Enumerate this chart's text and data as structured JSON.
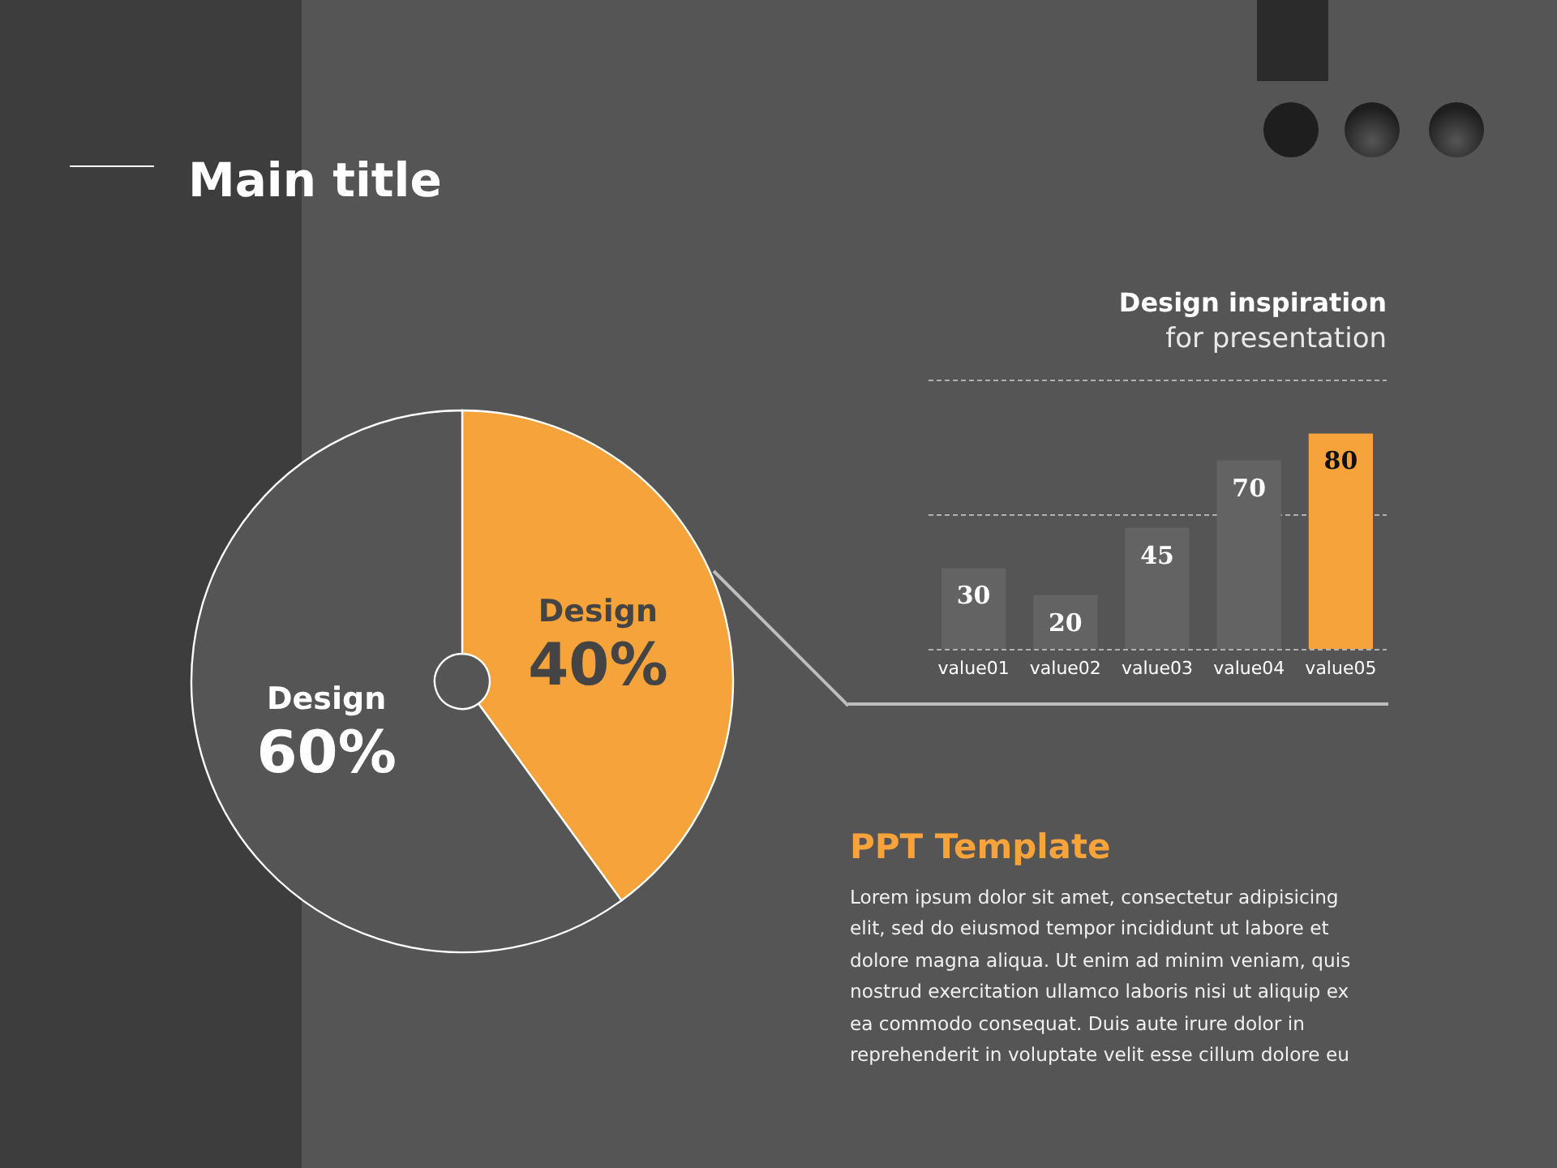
{
  "chart_data": [
    {
      "type": "pie",
      "title": "Main title",
      "categories": [
        "Design",
        "Design"
      ],
      "values": [
        40,
        60
      ],
      "colors": [
        "#f5a33a",
        "#555555"
      ],
      "value_labels": [
        "40%",
        "60%"
      ]
    },
    {
      "type": "bar",
      "title": "Design inspiration",
      "subtitle": "for presentation",
      "categories": [
        "value01",
        "value02",
        "value03",
        "value04",
        "value05"
      ],
      "values": [
        30,
        20,
        45,
        70,
        80
      ],
      "colors": [
        "#636363",
        "#636363",
        "#636363",
        "#636363",
        "#f5a33a"
      ],
      "ylim": [
        0,
        100
      ],
      "yticks": [
        {
          "value": 0,
          "label": null
        },
        {
          "value": 50,
          "label": null
        },
        {
          "value": 100,
          "label": null
        }
      ],
      "grid": "y",
      "tick_labels": "x",
      "data_labels": true,
      "annotations": [
        "PPT Template",
        "Lorem ipsum dolor sit amet, consectetur adipisicing elit, sed do eiusmod tempor incididunt ut labore et dolore magna aliqua. Ut enim ad minim veniam, quis nostrud exercitation ullamco laboris nisi ut aliquip ex ea commodo consequat. Duis aute irure dolor in reprehenderit in voluptate velit esse cillum dolore eu"
      ]
    }
  ]
}
